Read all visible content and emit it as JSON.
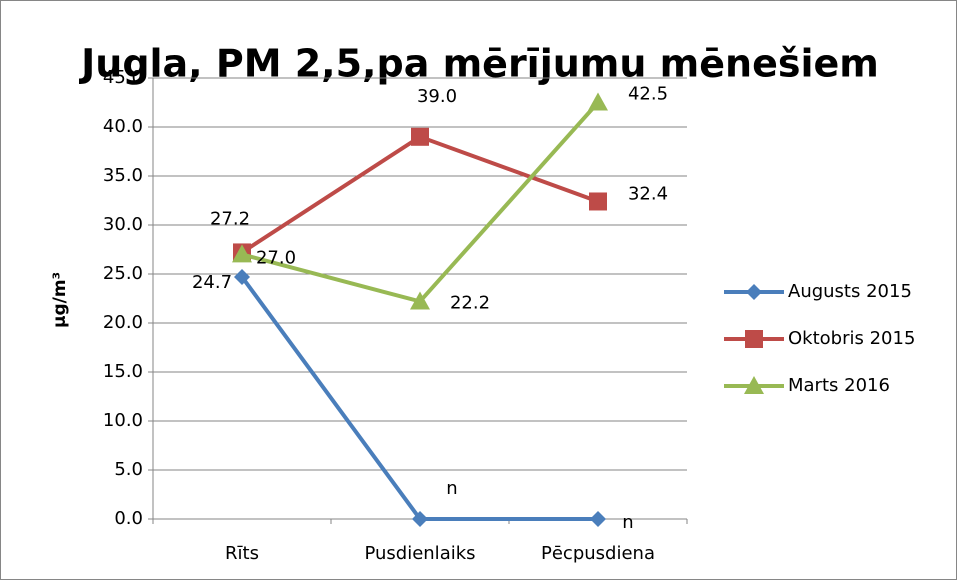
{
  "chart_data": {
    "type": "line",
    "title": "Jugla, PM 2,5,pa mērījumu mēnešiem",
    "y_label": "µg/m³",
    "categories": [
      "Rīts",
      "Pusdienlaiks",
      "Pēcpusdiena"
    ],
    "series": [
      {
        "name": "Augusts 2015",
        "color": "#4a7ebb",
        "marker": "diamond",
        "values": [
          24.7,
          0,
          0
        ],
        "value_labels": [
          "24.7",
          "n",
          "n"
        ]
      },
      {
        "name": "Oktobris 2015",
        "color": "#be4b48",
        "marker": "square",
        "values": [
          27.2,
          39.0,
          32.4
        ],
        "value_labels": [
          "27.2",
          "39.0",
          "32.4"
        ]
      },
      {
        "name": "Marts 2016",
        "color": "#98b954",
        "marker": "triangle",
        "values": [
          27.0,
          22.2,
          42.5
        ],
        "value_labels": [
          "27.0",
          "22.2",
          "42.5"
        ]
      }
    ],
    "ylim": [
      0,
      45
    ],
    "yticks": [
      {
        "value": 0,
        "label": "0.0"
      },
      {
        "value": 5,
        "label": "5.0"
      },
      {
        "value": 10,
        "label": "10.0"
      },
      {
        "value": 15,
        "label": "15.0"
      },
      {
        "value": 20,
        "label": "20.0"
      },
      {
        "value": 25,
        "label": "25.0"
      },
      {
        "value": 30,
        "label": "30.0"
      },
      {
        "value": 35,
        "label": "35.0"
      },
      {
        "value": 40,
        "label": "40.0"
      },
      {
        "value": 45,
        "label": "45.0"
      }
    ],
    "grid": true,
    "legend": "right"
  }
}
